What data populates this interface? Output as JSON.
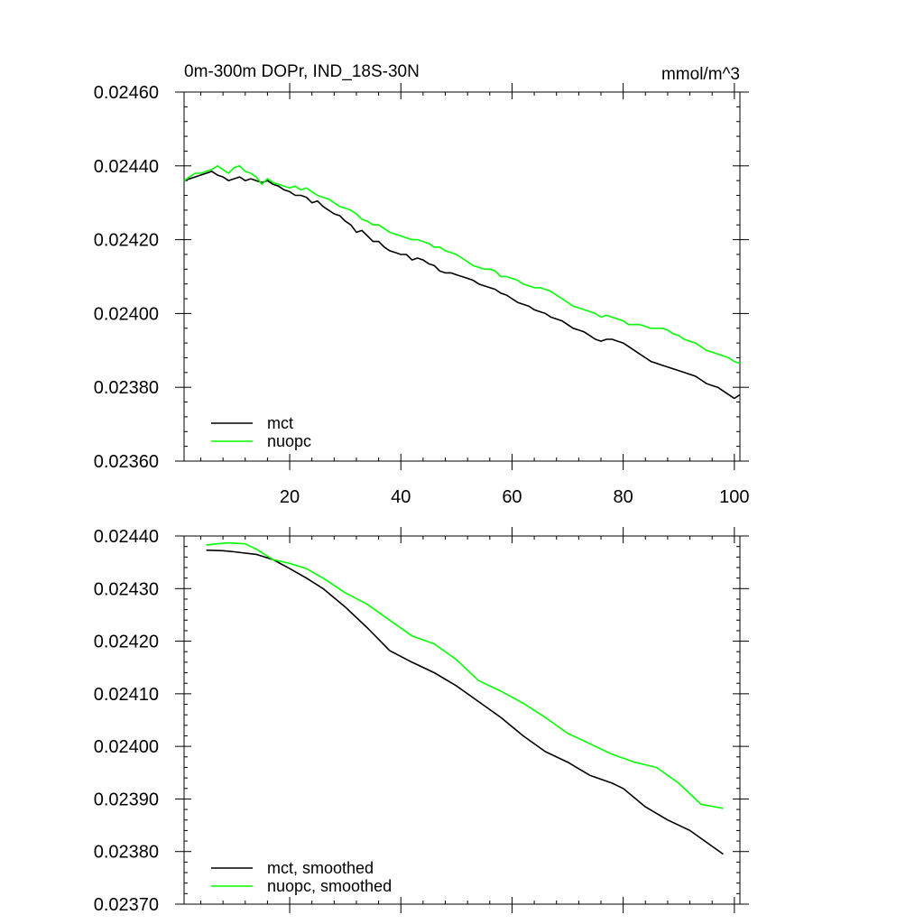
{
  "chart_data": [
    {
      "type": "line",
      "title": "0m-300m DOPr, IND_18S-30N",
      "units": "mmol/m^3",
      "xlabel": "",
      "ylabel": "",
      "xlim": [
        1,
        101
      ],
      "ylim": [
        0.0236,
        0.0246
      ],
      "xticks": [
        20,
        40,
        60,
        80,
        100
      ],
      "yticks": [
        0.0236,
        0.0238,
        0.024,
        0.0242,
        0.0244,
        0.0246
      ],
      "ytick_labels": [
        "0.02360",
        "0.02380",
        "0.02400",
        "0.02420",
        "0.02440",
        "0.02460"
      ],
      "legend_position": "bottom-left",
      "series": [
        {
          "name": "mct",
          "color": "#000000",
          "points": [
            [
              1,
              0.02436
            ],
            [
              2,
              0.024365
            ],
            [
              3,
              0.02437
            ],
            [
              4,
              0.024375
            ],
            [
              5,
              0.02438
            ],
            [
              6,
              0.024385
            ],
            [
              7,
              0.024375
            ],
            [
              8,
              0.02437
            ],
            [
              9,
              0.02436
            ],
            [
              10,
              0.024365
            ],
            [
              11,
              0.02437
            ],
            [
              12,
              0.02436
            ],
            [
              13,
              0.024365
            ],
            [
              14,
              0.02436
            ],
            [
              15,
              0.024355
            ],
            [
              16,
              0.02436
            ],
            [
              17,
              0.02435
            ],
            [
              18,
              0.024345
            ],
            [
              19,
              0.024335
            ],
            [
              20,
              0.02433
            ],
            [
              21,
              0.02432
            ],
            [
              22,
              0.02432
            ],
            [
              23,
              0.024315
            ],
            [
              24,
              0.0243
            ],
            [
              25,
              0.024305
            ],
            [
              26,
              0.02429
            ],
            [
              27,
              0.02428
            ],
            [
              28,
              0.02427
            ],
            [
              29,
              0.024265
            ],
            [
              30,
              0.02425
            ],
            [
              31,
              0.02424
            ],
            [
              32,
              0.02422
            ],
            [
              33,
              0.024225
            ],
            [
              34,
              0.02421
            ],
            [
              35,
              0.024195
            ],
            [
              36,
              0.024195
            ],
            [
              37,
              0.02418
            ],
            [
              38,
              0.02417
            ],
            [
              39,
              0.024165
            ],
            [
              40,
              0.02416
            ],
            [
              41,
              0.02416
            ],
            [
              42,
              0.024145
            ],
            [
              43,
              0.02415
            ],
            [
              44,
              0.024145
            ],
            [
              45,
              0.024135
            ],
            [
              46,
              0.02413
            ],
            [
              47,
              0.024115
            ],
            [
              48,
              0.02411
            ],
            [
              49,
              0.02411
            ],
            [
              50,
              0.024105
            ],
            [
              51,
              0.0241
            ],
            [
              52,
              0.024095
            ],
            [
              53,
              0.02409
            ],
            [
              54,
              0.02408
            ],
            [
              55,
              0.024075
            ],
            [
              56,
              0.02407
            ],
            [
              57,
              0.024065
            ],
            [
              58,
              0.024055
            ],
            [
              59,
              0.02405
            ],
            [
              60,
              0.02404
            ],
            [
              61,
              0.02403
            ],
            [
              62,
              0.024025
            ],
            [
              63,
              0.02402
            ],
            [
              64,
              0.02401
            ],
            [
              65,
              0.024005
            ],
            [
              66,
              0.024
            ],
            [
              67,
              0.02399
            ],
            [
              68,
              0.023985
            ],
            [
              69,
              0.02398
            ],
            [
              70,
              0.02397
            ],
            [
              71,
              0.02396
            ],
            [
              72,
              0.023955
            ],
            [
              73,
              0.02395
            ],
            [
              74,
              0.02394
            ],
            [
              75,
              0.02393
            ],
            [
              76,
              0.023925
            ],
            [
              77,
              0.02393
            ],
            [
              78,
              0.02393
            ],
            [
              79,
              0.023925
            ],
            [
              80,
              0.02392
            ],
            [
              81,
              0.02391
            ],
            [
              82,
              0.0239
            ],
            [
              83,
              0.02389
            ],
            [
              84,
              0.02388
            ],
            [
              85,
              0.02387
            ],
            [
              86,
              0.023865
            ],
            [
              87,
              0.02386
            ],
            [
              88,
              0.023855
            ],
            [
              89,
              0.02385
            ],
            [
              90,
              0.023845
            ],
            [
              91,
              0.02384
            ],
            [
              92,
              0.023835
            ],
            [
              93,
              0.02383
            ],
            [
              94,
              0.02382
            ],
            [
              95,
              0.02381
            ],
            [
              96,
              0.023805
            ],
            [
              97,
              0.0238
            ],
            [
              98,
              0.02379
            ],
            [
              99,
              0.02378
            ],
            [
              100,
              0.02377
            ],
            [
              101,
              0.02378
            ]
          ]
        },
        {
          "name": "nuopc",
          "color": "#00ff00",
          "points": [
            [
              1,
              0.02436
            ],
            [
              2,
              0.02437
            ],
            [
              3,
              0.02438
            ],
            [
              4,
              0.02438
            ],
            [
              5,
              0.024385
            ],
            [
              6,
              0.02439
            ],
            [
              7,
              0.0244
            ],
            [
              8,
              0.02439
            ],
            [
              9,
              0.02438
            ],
            [
              10,
              0.024395
            ],
            [
              11,
              0.0244
            ],
            [
              12,
              0.024385
            ],
            [
              13,
              0.02438
            ],
            [
              14,
              0.02437
            ],
            [
              15,
              0.02435
            ],
            [
              16,
              0.024365
            ],
            [
              17,
              0.024355
            ],
            [
              18,
              0.02435
            ],
            [
              19,
              0.024345
            ],
            [
              20,
              0.02434
            ],
            [
              21,
              0.024345
            ],
            [
              22,
              0.024335
            ],
            [
              23,
              0.02434
            ],
            [
              24,
              0.02433
            ],
            [
              25,
              0.02432
            ],
            [
              26,
              0.024315
            ],
            [
              27,
              0.02431
            ],
            [
              28,
              0.0243
            ],
            [
              29,
              0.02429
            ],
            [
              30,
              0.024285
            ],
            [
              31,
              0.02428
            ],
            [
              32,
              0.02427
            ],
            [
              33,
              0.024255
            ],
            [
              34,
              0.02425
            ],
            [
              35,
              0.02424
            ],
            [
              36,
              0.02424
            ],
            [
              37,
              0.02423
            ],
            [
              38,
              0.02422
            ],
            [
              39,
              0.024215
            ],
            [
              40,
              0.02421
            ],
            [
              41,
              0.024205
            ],
            [
              42,
              0.0242
            ],
            [
              43,
              0.0242
            ],
            [
              44,
              0.024195
            ],
            [
              45,
              0.02419
            ],
            [
              46,
              0.02418
            ],
            [
              47,
              0.02418
            ],
            [
              48,
              0.02417
            ],
            [
              49,
              0.024165
            ],
            [
              50,
              0.02416
            ],
            [
              51,
              0.02415
            ],
            [
              52,
              0.02414
            ],
            [
              53,
              0.02413
            ],
            [
              54,
              0.024125
            ],
            [
              55,
              0.02412
            ],
            [
              56,
              0.02412
            ],
            [
              57,
              0.024115
            ],
            [
              58,
              0.0241
            ],
            [
              59,
              0.0241
            ],
            [
              60,
              0.024095
            ],
            [
              61,
              0.02409
            ],
            [
              62,
              0.02408
            ],
            [
              63,
              0.024075
            ],
            [
              64,
              0.02407
            ],
            [
              65,
              0.02407
            ],
            [
              66,
              0.024065
            ],
            [
              67,
              0.02406
            ],
            [
              68,
              0.02405
            ],
            [
              69,
              0.02404
            ],
            [
              70,
              0.02403
            ],
            [
              71,
              0.02402
            ],
            [
              72,
              0.024015
            ],
            [
              73,
              0.02401
            ],
            [
              74,
              0.024005
            ],
            [
              75,
              0.024
            ],
            [
              76,
              0.02399
            ],
            [
              77,
              0.023995
            ],
            [
              78,
              0.02399
            ],
            [
              79,
              0.023985
            ],
            [
              80,
              0.02398
            ],
            [
              81,
              0.02397
            ],
            [
              82,
              0.02397
            ],
            [
              83,
              0.02397
            ],
            [
              84,
              0.023965
            ],
            [
              85,
              0.02396
            ],
            [
              86,
              0.02396
            ],
            [
              87,
              0.02396
            ],
            [
              88,
              0.023955
            ],
            [
              89,
              0.023945
            ],
            [
              90,
              0.02394
            ],
            [
              91,
              0.02393
            ],
            [
              92,
              0.023925
            ],
            [
              93,
              0.02392
            ],
            [
              94,
              0.02391
            ],
            [
              95,
              0.0239
            ],
            [
              96,
              0.023895
            ],
            [
              97,
              0.02389
            ],
            [
              98,
              0.023885
            ],
            [
              99,
              0.02388
            ],
            [
              100,
              0.02387
            ],
            [
              101,
              0.023865
            ]
          ]
        }
      ]
    },
    {
      "type": "line",
      "title": "",
      "xlabel": "",
      "ylabel": "",
      "xlim": [
        1,
        101
      ],
      "ylim": [
        0.0237,
        0.0244
      ],
      "xticks": [
        20,
        40,
        60,
        80,
        100
      ],
      "yticks": [
        0.0237,
        0.0238,
        0.0239,
        0.024,
        0.0241,
        0.0242,
        0.0243,
        0.0244
      ],
      "ytick_labels": [
        "0.02370",
        "0.02380",
        "0.02390",
        "0.02400",
        "0.02410",
        "0.02420",
        "0.02430",
        "0.02440"
      ],
      "legend_position": "bottom-left",
      "series": [
        {
          "name": "mct, smoothed",
          "color": "#000000",
          "points": [
            [
              5,
              0.024373
            ],
            [
              8,
              0.024372
            ],
            [
              10,
              0.02437
            ],
            [
              14,
              0.024365
            ],
            [
              17,
              0.024355
            ],
            [
              20,
              0.024338
            ],
            [
              23,
              0.02432
            ],
            [
              26,
              0.0243
            ],
            [
              30,
              0.024265
            ],
            [
              34,
              0.024225
            ],
            [
              38,
              0.024182
            ],
            [
              42,
              0.02416
            ],
            [
              46,
              0.02414
            ],
            [
              50,
              0.024115
            ],
            [
              54,
              0.024085
            ],
            [
              58,
              0.024055
            ],
            [
              62,
              0.02402
            ],
            [
              66,
              0.02399
            ],
            [
              70,
              0.02397
            ],
            [
              74,
              0.023945
            ],
            [
              78,
              0.02393
            ],
            [
              80,
              0.02392
            ],
            [
              84,
              0.023885
            ],
            [
              88,
              0.02386
            ],
            [
              92,
              0.02384
            ],
            [
              96,
              0.02381
            ],
            [
              98,
              0.023795
            ]
          ]
        },
        {
          "name": "nuopc, smoothed",
          "color": "#00ff00",
          "points": [
            [
              5,
              0.024383
            ],
            [
              7,
              0.024385
            ],
            [
              9,
              0.024387
            ],
            [
              12,
              0.024385
            ],
            [
              14,
              0.024375
            ],
            [
              17,
              0.024355
            ],
            [
              20,
              0.024348
            ],
            [
              23,
              0.024338
            ],
            [
              26,
              0.02432
            ],
            [
              30,
              0.024292
            ],
            [
              34,
              0.02427
            ],
            [
              38,
              0.02424
            ],
            [
              42,
              0.02421
            ],
            [
              46,
              0.024195
            ],
            [
              50,
              0.024165
            ],
            [
              54,
              0.024125
            ],
            [
              58,
              0.024105
            ],
            [
              62,
              0.024082
            ],
            [
              66,
              0.024055
            ],
            [
              70,
              0.024025
            ],
            [
              74,
              0.024005
            ],
            [
              78,
              0.023985
            ],
            [
              82,
              0.02397
            ],
            [
              86,
              0.02396
            ],
            [
              90,
              0.02393
            ],
            [
              94,
              0.02389
            ],
            [
              98,
              0.023882
            ]
          ]
        }
      ]
    }
  ]
}
